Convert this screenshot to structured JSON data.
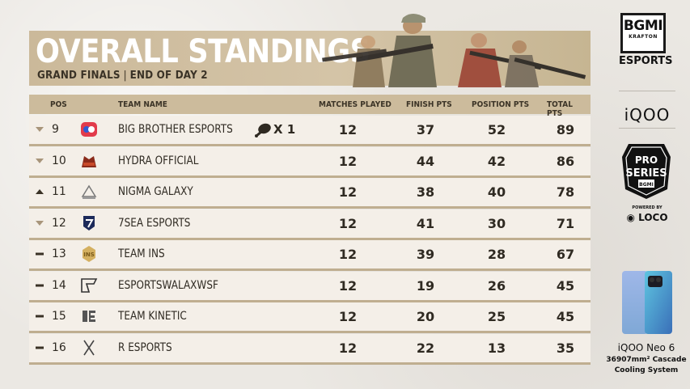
{
  "header": {
    "title": "OVERALL STANDINGS",
    "stage": "GRAND FINALS",
    "separator": "|",
    "day": "END OF DAY 2"
  },
  "columns": {
    "pos": "POS",
    "team": "TEAM NAME",
    "matches": "MATCHES PLAYED",
    "finish": "FINISH PTS",
    "position": "POSITION PTS",
    "total": "TOTAL PTS"
  },
  "rows": [
    {
      "trend": "down",
      "pos": "9",
      "team": "BIG BROTHER ESPORTS",
      "logo": "big-brother-logo",
      "chicken": "X 1",
      "mp": "12",
      "fp": "37",
      "pp": "52",
      "tp": "89"
    },
    {
      "trend": "down",
      "pos": "10",
      "team": "HYDRA OFFICIAL",
      "logo": "hydra-logo",
      "mp": "12",
      "fp": "44",
      "pp": "42",
      "tp": "86"
    },
    {
      "trend": "up",
      "pos": "11",
      "team": "NIGMA GALAXY",
      "logo": "nigma-galaxy-logo",
      "mp": "12",
      "fp": "38",
      "pp": "40",
      "tp": "78"
    },
    {
      "trend": "down",
      "pos": "12",
      "team": "7SEA ESPORTS",
      "logo": "7sea-logo",
      "mp": "12",
      "fp": "41",
      "pp": "30",
      "tp": "71"
    },
    {
      "trend": "same",
      "pos": "13",
      "team": "TEAM INS",
      "logo": "team-ins-logo",
      "mp": "12",
      "fp": "39",
      "pp": "28",
      "tp": "67"
    },
    {
      "trend": "same",
      "pos": "14",
      "team": "ESPORTSWALAXWSF",
      "logo": "wsf-logo",
      "mp": "12",
      "fp": "19",
      "pp": "26",
      "tp": "45"
    },
    {
      "trend": "same",
      "pos": "15",
      "team": "TEAM KINETIC",
      "logo": "team-kinetic-logo",
      "mp": "12",
      "fp": "20",
      "pp": "25",
      "tp": "45"
    },
    {
      "trend": "same",
      "pos": "16",
      "team": "R ESPORTS",
      "logo": "r-esports-logo",
      "mp": "12",
      "fp": "22",
      "pp": "13",
      "tp": "35"
    }
  ],
  "sidebar": {
    "bgmi": "BGMI",
    "krafton": "KRAFTON",
    "esports": "ESPORTS",
    "iqoo": "iQOO",
    "pro": "PRO",
    "series": "SERIES",
    "bgmi_small": "BGMI",
    "powered_by": "POWERED BY",
    "loco": "LOCO",
    "phone_name": "iQOO Neo 6",
    "phone_spec_1": "36907mm² Cascade",
    "phone_spec_2": "Cooling System"
  },
  "colors": {
    "banner": "#cbb99a",
    "row_bg": "#f4efe8",
    "row_border": "#bfae90",
    "trend_arrow": "#a8957a",
    "trend_same": "#3a3226"
  }
}
